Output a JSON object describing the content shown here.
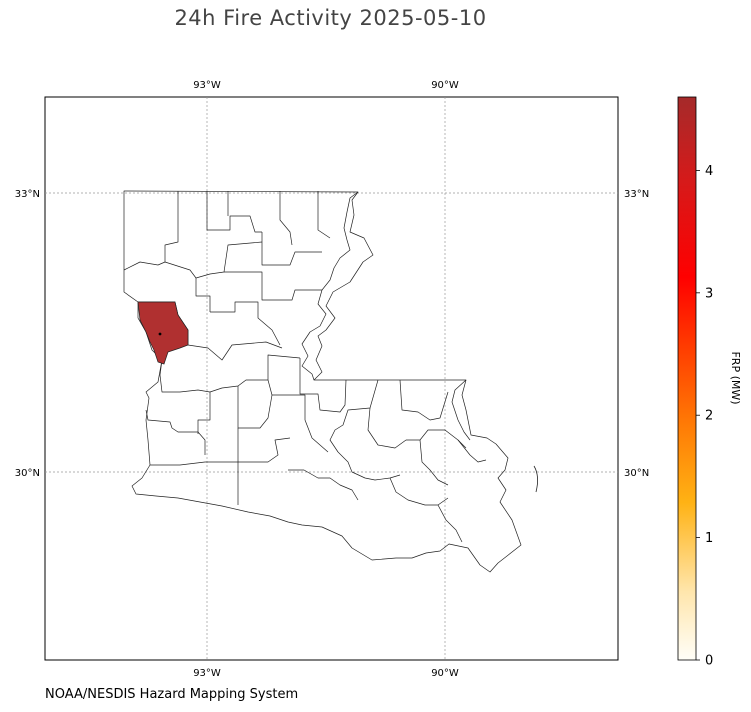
{
  "title": "24h Fire Activity 2025-05-10",
  "footer": "NOAA/NESDIS Hazard Mapping System",
  "map": {
    "region": "Louisiana",
    "top_lon_labels": [
      "93°W",
      "90°W"
    ],
    "bottom_lon_labels": [
      "93°W",
      "90°W"
    ],
    "left_lat_labels": [
      "33°N",
      "30°N"
    ],
    "right_lat_labels": [
      "33°N",
      "30°N"
    ],
    "highlighted_parish_color": "#b03030",
    "fire_point_color": "#000000"
  },
  "colorbar": {
    "label": "FRP (MW)",
    "ticks": [
      "0",
      "1",
      "2",
      "3",
      "4"
    ],
    "min": 0,
    "max": 4.6,
    "colors": [
      "#ffffff",
      "#ffe5a0",
      "#ffb000",
      "#ff6a00",
      "#ff2a00",
      "#ff0000",
      "#c02222",
      "#a52a2a"
    ]
  }
}
